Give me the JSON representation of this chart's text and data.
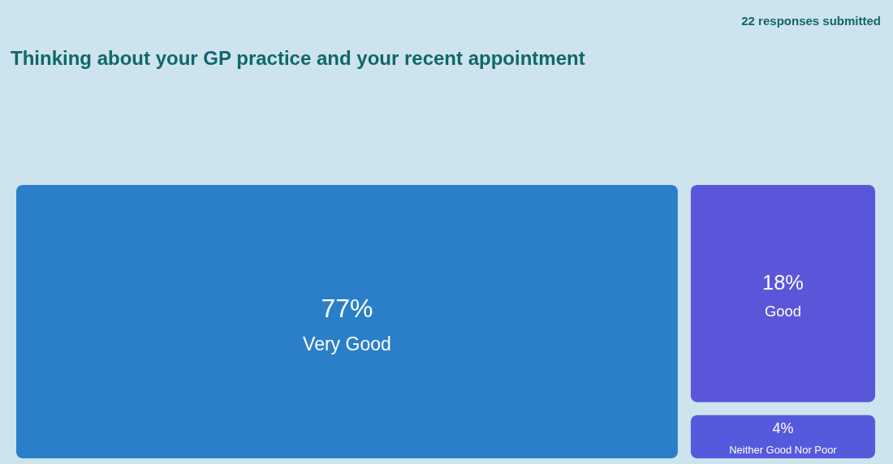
{
  "chart_data": {
    "type": "other",
    "title": "Thinking about your GP practice and your recent appointment",
    "annotations": [
      "22 responses submitted"
    ],
    "categories": [
      "Very Good",
      "Good",
      "Neither Good Nor Poor"
    ],
    "values": [
      77,
      18,
      4
    ],
    "value_labels": [
      "77%",
      "18%",
      "4%"
    ],
    "colors": [
      "#2a7fc8",
      "#5a56da",
      "#5559dc"
    ]
  }
}
